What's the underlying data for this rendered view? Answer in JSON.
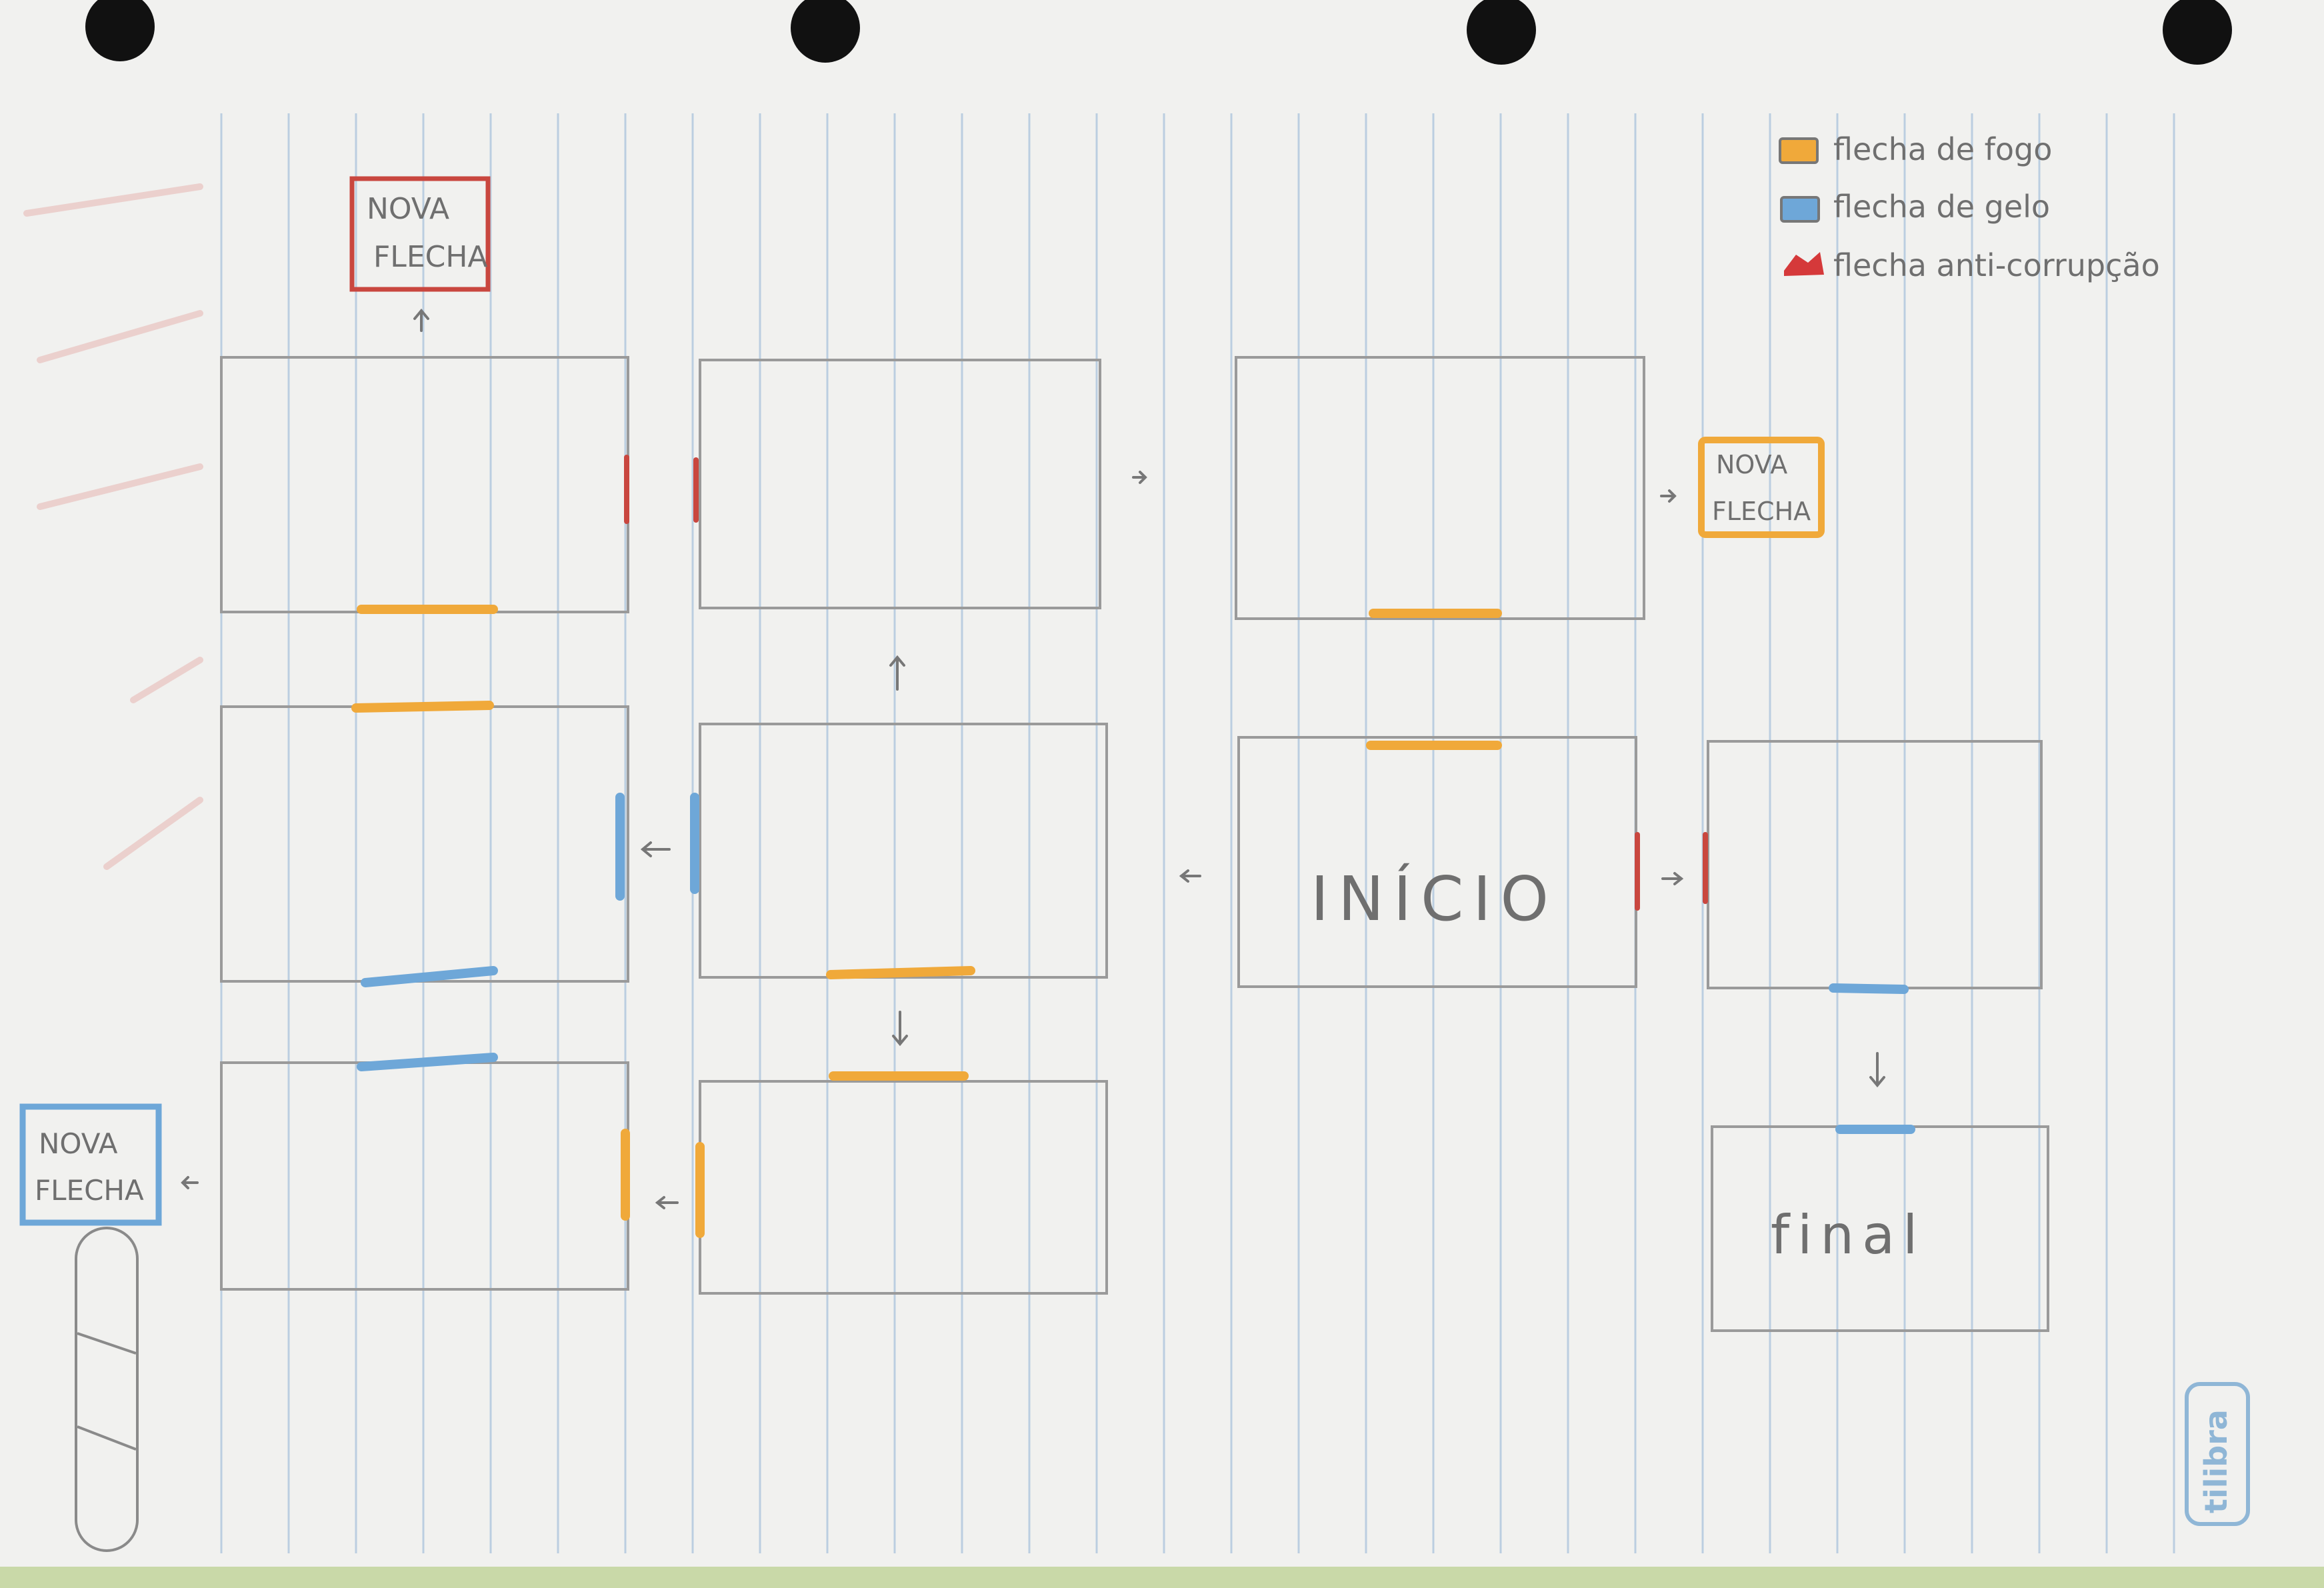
{
  "legend": {
    "items": [
      {
        "label": "flecha de fogo",
        "color": "#f0a93a"
      },
      {
        "label": "flecha de gelo",
        "color": "#6ea7d8"
      },
      {
        "label": "flecha anti-corrupção",
        "color": "#d5393a"
      }
    ]
  },
  "rooms": {
    "start": "INÍCIO",
    "end": "final"
  },
  "new_arrow_labels": [
    {
      "line1": "NOVA",
      "line2": "FLECHA",
      "color": "#c9473f"
    },
    {
      "line1": "NOVA",
      "line2": "FLECHA",
      "color": "#f0a93a"
    },
    {
      "line1": "NOVA",
      "line2": "FLECHA",
      "color": "#6ea7d8"
    }
  ],
  "brand": "tilibra",
  "colors": {
    "paper": "#f1f1ef",
    "rule_line": "#a9c3dc",
    "pencil": "#9a9a9a",
    "fire": "#f0a93a",
    "ice": "#6ea7d8",
    "anti_corruption": "#d5393a",
    "hole": "#111111"
  }
}
